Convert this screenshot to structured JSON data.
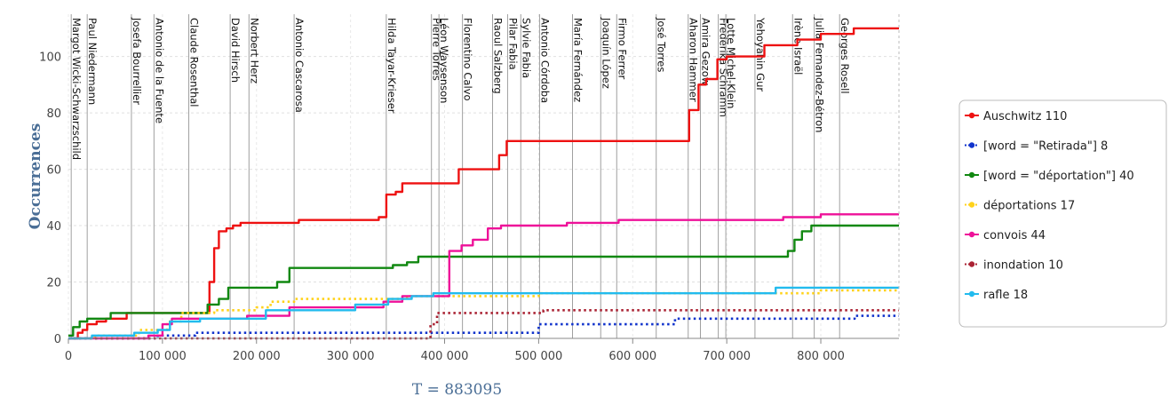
{
  "chart_data": {
    "type": "line",
    "title": "",
    "xlabel": "T = 883095",
    "ylabel": "Occurrences",
    "xlim": [
      0,
      883095
    ],
    "ylim": [
      0,
      115
    ],
    "x_ticks": [
      0,
      100000,
      200000,
      300000,
      400000,
      500000,
      600000,
      700000,
      800000
    ],
    "x_tick_labels": [
      "0",
      "100 000",
      "200 000",
      "300 000",
      "400 000",
      "500 000",
      "600 000",
      "700 000",
      "800 000"
    ],
    "y_ticks": [
      0,
      20,
      40,
      60,
      80,
      100
    ],
    "y_tick_labels": [
      "0",
      "20",
      "40",
      "60",
      "80",
      "100"
    ],
    "grid": true,
    "legend_position": "right",
    "vertical_markers": [
      {
        "x": 3000,
        "label": "Margot Wicki-Schwarzschild"
      },
      {
        "x": 20000,
        "label": "Paul Niedermann"
      },
      {
        "x": 67000,
        "label": "Josefa Bourrellier"
      },
      {
        "x": 91000,
        "label": "Antonio de la Fuente"
      },
      {
        "x": 128000,
        "label": "Claude Rosenthal"
      },
      {
        "x": 172000,
        "label": "David Hirsch"
      },
      {
        "x": 192000,
        "label": "Norbert Herz"
      },
      {
        "x": 240000,
        "label": "Antonio Cascarosa"
      },
      {
        "x": 338000,
        "label": "Hilda Tayar-Krieser"
      },
      {
        "x": 386000,
        "label": "Pierre Torres"
      },
      {
        "x": 394000,
        "label": "Léon Waysenson"
      },
      {
        "x": 419000,
        "label": "Florentino Calvo"
      },
      {
        "x": 451000,
        "label": "Raoul Salzberg"
      },
      {
        "x": 467000,
        "label": "Pilar Fabia"
      },
      {
        "x": 481000,
        "label": "Sylvie Fabia"
      },
      {
        "x": 501000,
        "label": "Antonio Córdoba"
      },
      {
        "x": 536000,
        "label": "María Fernández"
      },
      {
        "x": 566000,
        "label": "Joaquín López"
      },
      {
        "x": 583000,
        "label": "Firmo Ferrer"
      },
      {
        "x": 625000,
        "label": "José Torres"
      },
      {
        "x": 659000,
        "label": "Aharon Hammer"
      },
      {
        "x": 672000,
        "label": "Amira Gezow"
      },
      {
        "x": 691000,
        "label": "Fredérika Schramm"
      },
      {
        "x": 699000,
        "label": "Lotte Michel-Klein"
      },
      {
        "x": 730000,
        "label": "Yehoyahin Gur"
      },
      {
        "x": 770000,
        "label": "Irène Israël"
      },
      {
        "x": 793000,
        "label": "Julia Fernandez-Bétron"
      },
      {
        "x": 820000,
        "label": "Georges Rosell"
      }
    ],
    "series": [
      {
        "name": "Auschwitz 110",
        "color": "#ee1111",
        "style": "solid",
        "points": [
          [
            0,
            0
          ],
          [
            10000,
            2
          ],
          [
            15000,
            3
          ],
          [
            20000,
            5
          ],
          [
            30000,
            6
          ],
          [
            40000,
            7
          ],
          [
            55000,
            7
          ],
          [
            62000,
            9
          ],
          [
            140000,
            9
          ],
          [
            150000,
            20
          ],
          [
            155000,
            32
          ],
          [
            160000,
            38
          ],
          [
            168000,
            39
          ],
          [
            175000,
            40
          ],
          [
            183000,
            41
          ],
          [
            240000,
            41
          ],
          [
            245000,
            42
          ],
          [
            330000,
            43
          ],
          [
            338000,
            51
          ],
          [
            348000,
            52
          ],
          [
            355000,
            55
          ],
          [
            410000,
            55
          ],
          [
            415000,
            60
          ],
          [
            450000,
            60
          ],
          [
            458000,
            65
          ],
          [
            466000,
            70
          ],
          [
            655000,
            70
          ],
          [
            660000,
            81
          ],
          [
            670000,
            90
          ],
          [
            678000,
            92
          ],
          [
            690000,
            99
          ],
          [
            700000,
            100
          ],
          [
            740000,
            104
          ],
          [
            775000,
            106
          ],
          [
            800000,
            108
          ],
          [
            835000,
            110
          ],
          [
            883095,
            110
          ]
        ]
      },
      {
        "name": "[word = \"Retirada\"] 8",
        "color": "#1133cc",
        "style": "dotted",
        "points": [
          [
            0,
            0
          ],
          [
            95000,
            1
          ],
          [
            130000,
            1
          ],
          [
            135000,
            2
          ],
          [
            495000,
            2
          ],
          [
            500000,
            5
          ],
          [
            640000,
            5
          ],
          [
            645000,
            7
          ],
          [
            830000,
            7
          ],
          [
            836000,
            8
          ],
          [
            883095,
            8
          ]
        ]
      },
      {
        "name": "[word = \"déportation\"] 40",
        "color": "#118811",
        "style": "solid",
        "points": [
          [
            0,
            1
          ],
          [
            5000,
            4
          ],
          [
            12000,
            6
          ],
          [
            20000,
            7
          ],
          [
            40000,
            7
          ],
          [
            45000,
            9
          ],
          [
            140000,
            9
          ],
          [
            148000,
            12
          ],
          [
            160000,
            14
          ],
          [
            170000,
            18
          ],
          [
            215000,
            18
          ],
          [
            222000,
            20
          ],
          [
            235000,
            25
          ],
          [
            330000,
            25
          ],
          [
            345000,
            26
          ],
          [
            360000,
            27
          ],
          [
            372000,
            29
          ],
          [
            760000,
            29
          ],
          [
            765000,
            31
          ],
          [
            772000,
            35
          ],
          [
            780000,
            38
          ],
          [
            790000,
            40
          ],
          [
            883095,
            40
          ]
        ]
      },
      {
        "name": "déportations 17",
        "color": "#ffd21a",
        "style": "dotted",
        "points": [
          [
            0,
            0
          ],
          [
            28000,
            1
          ],
          [
            65000,
            1
          ],
          [
            75000,
            3
          ],
          [
            105000,
            6
          ],
          [
            120000,
            9
          ],
          [
            155000,
            10
          ],
          [
            200000,
            11
          ],
          [
            215000,
            13
          ],
          [
            240000,
            14
          ],
          [
            355000,
            14
          ],
          [
            360000,
            15
          ],
          [
            500000,
            16
          ],
          [
            780000,
            16
          ],
          [
            800000,
            17
          ],
          [
            883095,
            17
          ]
        ]
      },
      {
        "name": "convois 44",
        "color": "#ee1199",
        "style": "solid",
        "points": [
          [
            0,
            0
          ],
          [
            85000,
            1
          ],
          [
            100000,
            5
          ],
          [
            110000,
            7
          ],
          [
            190000,
            8
          ],
          [
            225000,
            8
          ],
          [
            235000,
            11
          ],
          [
            320000,
            11
          ],
          [
            335000,
            13
          ],
          [
            355000,
            15
          ],
          [
            385000,
            15
          ],
          [
            405000,
            31
          ],
          [
            418000,
            33
          ],
          [
            430000,
            35
          ],
          [
            446000,
            39
          ],
          [
            460000,
            40
          ],
          [
            500000,
            40
          ],
          [
            530000,
            41
          ],
          [
            585000,
            42
          ],
          [
            720000,
            42
          ],
          [
            760000,
            43
          ],
          [
            800000,
            44
          ],
          [
            883095,
            44
          ]
        ]
      },
      {
        "name": "inondation 10",
        "color": "#aa2233",
        "style": "dotted",
        "points": [
          [
            0,
            0
          ],
          [
            380000,
            0
          ],
          [
            385000,
            5
          ],
          [
            392000,
            9
          ],
          [
            500000,
            9
          ],
          [
            505000,
            10
          ],
          [
            883095,
            10
          ]
        ]
      },
      {
        "name": "rafle  18",
        "color": "#22bbee",
        "style": "solid",
        "points": [
          [
            0,
            0
          ],
          [
            20000,
            0
          ],
          [
            25000,
            1
          ],
          [
            70000,
            2
          ],
          [
            95000,
            3
          ],
          [
            108000,
            6
          ],
          [
            140000,
            7
          ],
          [
            210000,
            10
          ],
          [
            225000,
            10
          ],
          [
            240000,
            10
          ],
          [
            295000,
            10
          ],
          [
            305000,
            12
          ],
          [
            340000,
            14
          ],
          [
            365000,
            15
          ],
          [
            388000,
            16
          ],
          [
            745000,
            16
          ],
          [
            752000,
            18
          ],
          [
            883095,
            18
          ]
        ]
      }
    ]
  }
}
